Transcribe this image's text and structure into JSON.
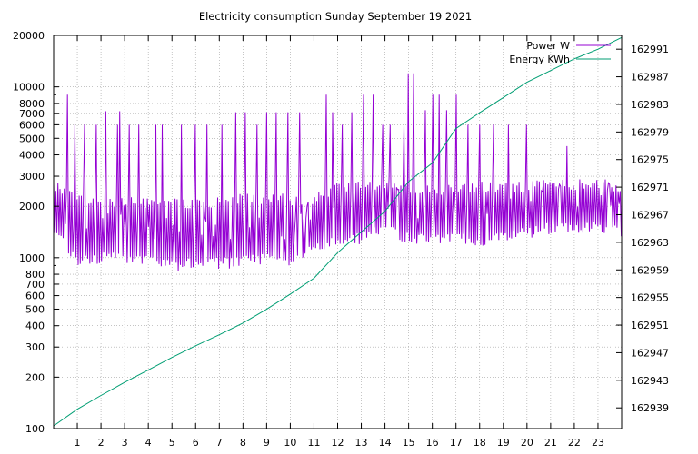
{
  "chart_data": {
    "type": "line",
    "title": "Electricity consumption Sunday September 19 2021",
    "xlabel": "",
    "ylabel": "",
    "y2label": "",
    "grid": true,
    "legend_position": "top-right",
    "x_ticks": [
      1,
      2,
      3,
      4,
      5,
      6,
      7,
      8,
      9,
      10,
      11,
      12,
      13,
      14,
      15,
      16,
      17,
      18,
      19,
      20,
      21,
      22,
      23
    ],
    "xlim": [
      0,
      24
    ],
    "y_scale": "log",
    "ylim": [
      100,
      20000
    ],
    "y_ticks": [
      100,
      200,
      300,
      400,
      500,
      600,
      700,
      800,
      1000,
      2000,
      3000,
      4000,
      5000,
      6000,
      7000,
      8000,
      10000,
      20000
    ],
    "y_tick_labels": [
      "100",
      "200",
      "300",
      "400",
      "500",
      "600",
      "700",
      "800",
      "1000",
      "2000",
      "3000",
      "4000",
      "5000",
      "6000",
      "7000",
      "8000",
      "10000",
      "20000"
    ],
    "y2_scale": "log",
    "y2lim": [
      162936,
      162993
    ],
    "y2_ticks": [
      162939,
      162943,
      162947,
      162951,
      162955,
      162959,
      162963,
      162967,
      162971,
      162975,
      162979,
      162983,
      162987,
      162991
    ],
    "series": [
      {
        "name": "Power W",
        "axis": "y",
        "color": "#9400d3",
        "envelope": [
          {
            "x": 0.0,
            "low": 1500,
            "high": 2700
          },
          {
            "x": 1.0,
            "low": 950,
            "high": 2200
          },
          {
            "x": 2.0,
            "low": 1000,
            "high": 2200
          },
          {
            "x": 3.0,
            "low": 1000,
            "high": 2100
          },
          {
            "x": 4.0,
            "low": 950,
            "high": 2100
          },
          {
            "x": 5.0,
            "low": 900,
            "high": 2100
          },
          {
            "x": 6.0,
            "low": 930,
            "high": 2100
          },
          {
            "x": 7.0,
            "low": 930,
            "high": 2100
          },
          {
            "x": 8.0,
            "low": 950,
            "high": 2200
          },
          {
            "x": 9.0,
            "low": 980,
            "high": 2200
          },
          {
            "x": 10.0,
            "low": 980,
            "high": 2200
          },
          {
            "x": 11.0,
            "low": 1100,
            "high": 2200
          },
          {
            "x": 12.0,
            "low": 1300,
            "high": 2600
          },
          {
            "x": 13.0,
            "low": 1300,
            "high": 2600
          },
          {
            "x": 14.0,
            "low": 1500,
            "high": 2800
          },
          {
            "x": 15.0,
            "low": 1300,
            "high": 2600
          },
          {
            "x": 16.0,
            "low": 1300,
            "high": 2500
          },
          {
            "x": 17.0,
            "low": 1300,
            "high": 2500
          },
          {
            "x": 18.0,
            "low": 1250,
            "high": 2600
          },
          {
            "x": 19.0,
            "low": 1300,
            "high": 2600
          },
          {
            "x": 20.0,
            "low": 1400,
            "high": 2600
          },
          {
            "x": 21.0,
            "low": 1500,
            "high": 2700
          },
          {
            "x": 22.0,
            "low": 1500,
            "high": 2700
          },
          {
            "x": 23.0,
            "low": 1500,
            "high": 2700
          },
          {
            "x": 24.0,
            "low": 1400,
            "high": 2600
          }
        ],
        "spikes": [
          {
            "x": 0.6,
            "y": 9000
          },
          {
            "x": 0.9,
            "y": 6000
          },
          {
            "x": 1.3,
            "y": 6000
          },
          {
            "x": 1.8,
            "y": 6000
          },
          {
            "x": 2.2,
            "y": 7200
          },
          {
            "x": 2.7,
            "y": 6000
          },
          {
            "x": 2.8,
            "y": 7200
          },
          {
            "x": 3.2,
            "y": 6000
          },
          {
            "x": 3.6,
            "y": 6000
          },
          {
            "x": 4.3,
            "y": 6000
          },
          {
            "x": 4.6,
            "y": 6000
          },
          {
            "x": 5.4,
            "y": 6000
          },
          {
            "x": 6.0,
            "y": 6000
          },
          {
            "x": 6.5,
            "y": 6000
          },
          {
            "x": 7.1,
            "y": 6000
          },
          {
            "x": 7.7,
            "y": 7100
          },
          {
            "x": 8.1,
            "y": 7100
          },
          {
            "x": 8.6,
            "y": 6000
          },
          {
            "x": 9.0,
            "y": 7100
          },
          {
            "x": 9.4,
            "y": 7100
          },
          {
            "x": 9.9,
            "y": 7100
          },
          {
            "x": 10.4,
            "y": 7100
          },
          {
            "x": 11.5,
            "y": 9000
          },
          {
            "x": 11.8,
            "y": 7100
          },
          {
            "x": 12.2,
            "y": 6000
          },
          {
            "x": 12.6,
            "y": 7100
          },
          {
            "x": 13.1,
            "y": 9000
          },
          {
            "x": 13.5,
            "y": 9000
          },
          {
            "x": 13.9,
            "y": 6000
          },
          {
            "x": 14.2,
            "y": 6000
          },
          {
            "x": 14.8,
            "y": 6000
          },
          {
            "x": 15.0,
            "y": 12000
          },
          {
            "x": 15.2,
            "y": 12000
          },
          {
            "x": 15.7,
            "y": 7300
          },
          {
            "x": 16.0,
            "y": 9000
          },
          {
            "x": 16.3,
            "y": 9000
          },
          {
            "x": 16.6,
            "y": 7300
          },
          {
            "x": 17.0,
            "y": 9000
          },
          {
            "x": 17.5,
            "y": 6000
          },
          {
            "x": 18.0,
            "y": 6000
          },
          {
            "x": 18.6,
            "y": 6000
          },
          {
            "x": 19.2,
            "y": 6000
          },
          {
            "x": 20.0,
            "y": 6000
          },
          {
            "x": 21.7,
            "y": 4500
          }
        ]
      },
      {
        "name": "Energy KWh",
        "axis": "y2",
        "color": "#009e73",
        "points": [
          {
            "x": 0,
            "y": 162936.4
          },
          {
            "x": 1,
            "y": 162938.8
          },
          {
            "x": 2,
            "y": 162940.8
          },
          {
            "x": 3,
            "y": 162942.7
          },
          {
            "x": 4,
            "y": 162944.5
          },
          {
            "x": 5,
            "y": 162946.3
          },
          {
            "x": 6,
            "y": 162948.0
          },
          {
            "x": 7,
            "y": 162949.6
          },
          {
            "x": 8,
            "y": 162951.3
          },
          {
            "x": 9,
            "y": 162953.3
          },
          {
            "x": 10,
            "y": 162955.5
          },
          {
            "x": 11,
            "y": 162957.8
          },
          {
            "x": 12,
            "y": 162961.5
          },
          {
            "x": 13,
            "y": 162964.5
          },
          {
            "x": 14,
            "y": 162967.5
          },
          {
            "x": 15,
            "y": 162971.8
          },
          {
            "x": 16,
            "y": 162974.5
          },
          {
            "x": 17,
            "y": 162979.5
          },
          {
            "x": 18,
            "y": 162981.8
          },
          {
            "x": 19,
            "y": 162984.0
          },
          {
            "x": 20,
            "y": 162986.2
          },
          {
            "x": 21,
            "y": 162987.9
          },
          {
            "x": 22,
            "y": 162989.6
          },
          {
            "x": 23,
            "y": 162991.0
          },
          {
            "x": 24,
            "y": 162992.7
          }
        ]
      }
    ]
  }
}
